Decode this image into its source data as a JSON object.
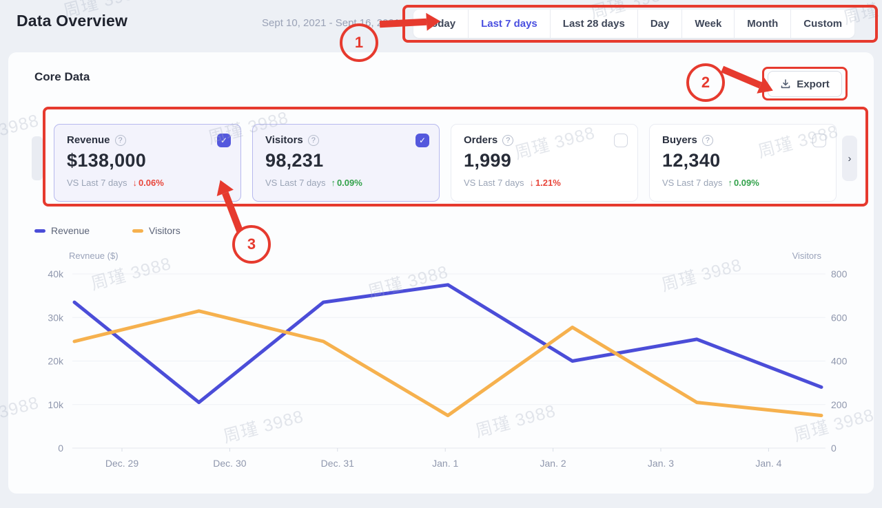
{
  "header": {
    "title": "Data Overview",
    "date_range": "Sept 10, 2021 - Sept 16, 2021",
    "tabs": [
      {
        "label": "Today",
        "selected": false
      },
      {
        "label": "Last 7 days",
        "selected": true
      },
      {
        "label": "Last 28 days",
        "selected": false
      },
      {
        "label": "Day",
        "selected": false
      },
      {
        "label": "Week",
        "selected": false
      },
      {
        "label": "Month",
        "selected": false
      },
      {
        "label": "Custom",
        "selected": false
      }
    ]
  },
  "core": {
    "section_title": "Core Data",
    "export_label": "Export",
    "cards": [
      {
        "title": "Revenue",
        "value": "$138,000",
        "vs_label": "VS Last 7 days",
        "delta": "0.06%",
        "direction": "down",
        "checked": true
      },
      {
        "title": "Visitors",
        "value": "98,231",
        "vs_label": "VS Last 7 days",
        "delta": "0.09%",
        "direction": "up",
        "checked": true
      },
      {
        "title": "Orders",
        "value": "1,999",
        "vs_label": "VS Last 7 days",
        "delta": "1.21%",
        "direction": "down",
        "checked": false
      },
      {
        "title": "Buyers",
        "value": "12,340",
        "vs_label": "VS Last 7 days",
        "delta": "0.09%",
        "direction": "up",
        "checked": false
      }
    ]
  },
  "legend": {
    "items": [
      {
        "label": "Revenue",
        "color": "#4B4DD8"
      },
      {
        "label": "Visitors",
        "color": "#F6B14E"
      }
    ]
  },
  "chart_data": {
    "type": "line",
    "categories": [
      "Dec. 29",
      "Dec. 30",
      "Dec. 31",
      "Jan. 1",
      "Jan. 2",
      "Jan. 3",
      "Jan. 4"
    ],
    "series": [
      {
        "name": "Revenue",
        "yaxis": "left",
        "color": "#4B4DD8",
        "values": [
          33500,
          10500,
          33500,
          37500,
          20000,
          25000,
          14000
        ]
      },
      {
        "name": "Visitors",
        "yaxis": "right",
        "color": "#F6B14E",
        "values": [
          490,
          630,
          490,
          150,
          555,
          210,
          150
        ]
      }
    ],
    "left_axis": {
      "title": "Revneue ($)",
      "min": 0,
      "max": 40000,
      "tick_labels": [
        "0",
        "10k",
        "20k",
        "30k",
        "40k"
      ]
    },
    "right_axis": {
      "title": "Visitors",
      "min": 0,
      "max": 800,
      "tick_labels": [
        "0",
        "200",
        "400",
        "600",
        "800"
      ]
    },
    "grid": true,
    "legend_position": "top-left"
  },
  "annotations": {
    "step1": "1",
    "step2": "2",
    "step3": "3"
  },
  "watermark": {
    "text": "周瑾 3988"
  },
  "icons": {
    "help": "?",
    "check": "✓",
    "next": "›",
    "arrow_up": "↑",
    "arrow_down": "↓"
  },
  "colors": {
    "accent": "#4A4FE0",
    "annotation_red": "#E63A2E",
    "positive": "#33A24B",
    "negative": "#E8463B"
  }
}
